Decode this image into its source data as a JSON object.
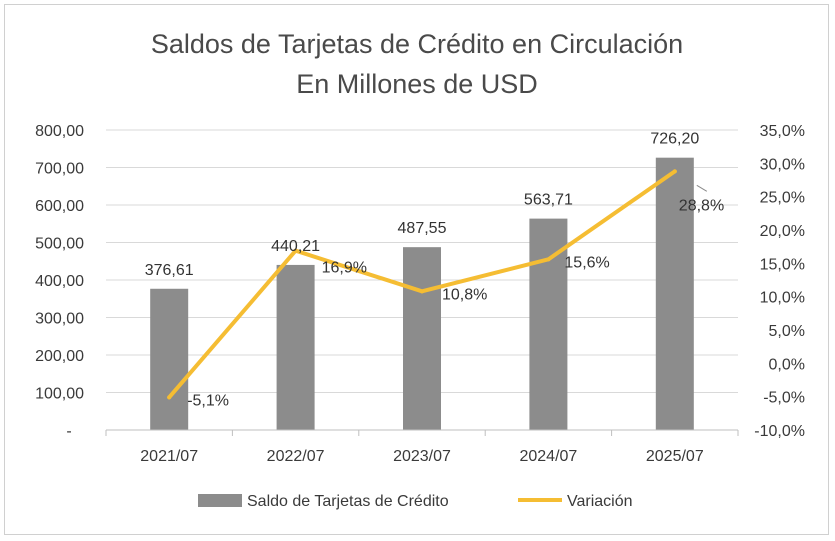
{
  "chart_data": {
    "type": "bar+line",
    "title": "Saldos de Tarjetas de Crédito en Circulación",
    "subtitle": "En Millones de USD",
    "categories": [
      "2021/07",
      "2022/07",
      "2023/07",
      "2024/07",
      "2025/07"
    ],
    "series": [
      {
        "name": "Saldo de Tarjetas de Crédito",
        "type": "bar",
        "axis": "left",
        "values": [
          376.61,
          440.21,
          487.55,
          563.71,
          726.2
        ],
        "labels": [
          "376,61",
          "440,21",
          "487,55",
          "563,71",
          "726,20"
        ],
        "color": "#8c8c8c"
      },
      {
        "name": "Variación",
        "type": "line",
        "axis": "right",
        "values": [
          -5.1,
          16.9,
          10.8,
          15.6,
          28.8
        ],
        "labels": [
          "-5,1%",
          "16,9%",
          "10,8%",
          "15,6%",
          "28,8%"
        ],
        "color": "#f5bd33"
      }
    ],
    "y_left": {
      "min": 0,
      "max": 800,
      "step": 100,
      "tick_labels": [
        "-",
        "100,00",
        "200,00",
        "300,00",
        "400,00",
        "500,00",
        "600,00",
        "700,00",
        "800,00"
      ]
    },
    "y_right": {
      "min": -10,
      "max": 35,
      "step": 5,
      "tick_labels": [
        "-10,0%",
        "-5,0%",
        "0,0%",
        "5,0%",
        "10,0%",
        "15,0%",
        "20,0%",
        "25,0%",
        "30,0%",
        "35,0%"
      ]
    },
    "grid": true,
    "legend": "bottom-center"
  }
}
